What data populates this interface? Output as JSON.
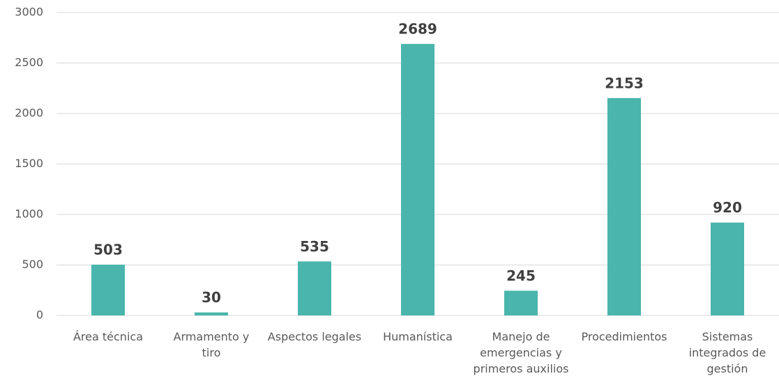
{
  "chart_data": {
    "type": "bar",
    "categories": [
      "Área técnica",
      "Armamento y tiro",
      "Aspectos legales",
      "Humanística",
      "Manejo de emergencias y primeros auxilios",
      "Procedimientos",
      "Sistemas integrados de gestión"
    ],
    "values": [
      503,
      30,
      535,
      2689,
      245,
      2153,
      920
    ],
    "color": "#4ab5ac",
    "ylim": [
      0,
      3000
    ],
    "yticks": [
      0,
      500,
      1000,
      1500,
      2000,
      2500,
      3000
    ],
    "grid": true
  }
}
